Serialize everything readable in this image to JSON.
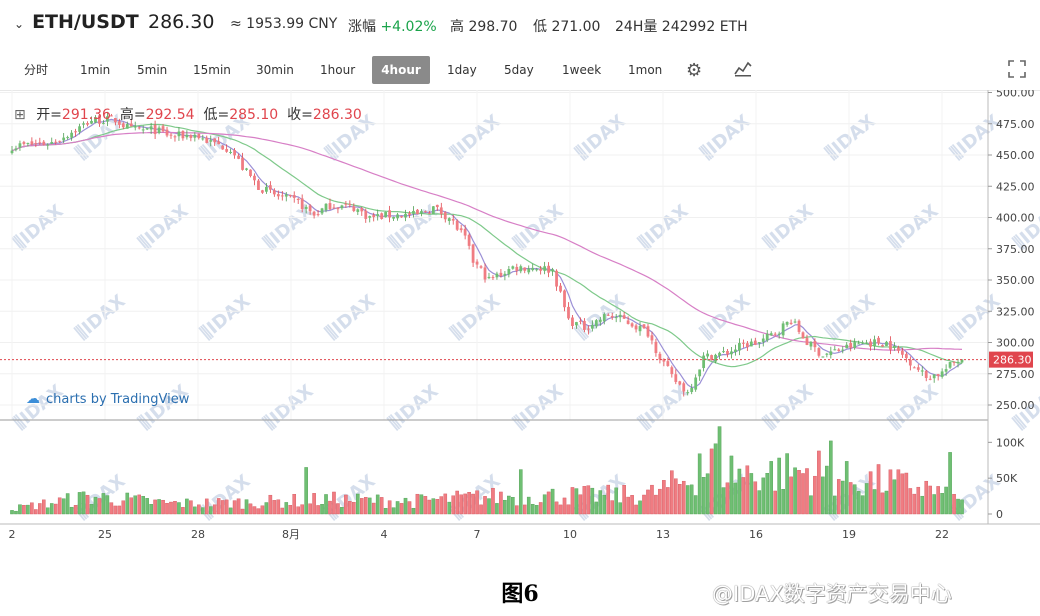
{
  "header": {
    "chevron": "⌄",
    "symbol": "ETH/USDT",
    "price": "286.30",
    "cny": "≈ 1953.99 CNY",
    "change_label": "涨幅",
    "change_value": "+4.02%",
    "high_label": "高",
    "high_value": "298.70",
    "low_label": "低",
    "low_value": "271.00",
    "volume_label": "24H量",
    "volume_value": "242992 ETH"
  },
  "toolbar": {
    "timeframes": [
      "分时",
      "1min",
      "5min",
      "15min",
      "30min",
      "1hour",
      "4hour",
      "1day",
      "5day",
      "1week",
      "1mon"
    ],
    "active": "4hour",
    "settings_icon": "gear-icon",
    "indicator_icon": "indicators-icon",
    "fullscreen_icon": "fullscreen-icon"
  },
  "ohlc": {
    "open_label": "开=",
    "open": "291.36",
    "high_label": "高=",
    "high": "292.54",
    "low_label": "低=",
    "low": "285.10",
    "close_label": "收=",
    "close": "286.30"
  },
  "branding": {
    "tradingview": "charts by TradingView",
    "watermark": "IDAX",
    "footer_mark": "@IDAX数字资产交易中心",
    "caption": "图6"
  },
  "colors": {
    "up": "#6fbf73",
    "down": "#f07c82",
    "ma_short": "#9b8fd6",
    "ma_mid": "#7ec98a",
    "ma_long": "#d77fc6",
    "price_line": "#e0454d"
  },
  "chart_data": {
    "type": "candlestick",
    "interval": "4hour",
    "x_ticks": [
      "2",
      "25",
      "28",
      "8月",
      "4",
      "7",
      "10",
      "13",
      "16",
      "19",
      "22"
    ],
    "y_ticks": [
      "250.00",
      "275.00",
      "300.00",
      "325.00",
      "350.00",
      "375.00",
      "400.00",
      "425.00",
      "450.00",
      "475.00",
      "500.00"
    ],
    "ylim": [
      238,
      502
    ],
    "volume_ticks": [
      "0",
      "50K",
      "100K"
    ],
    "volume_ylim": [
      0,
      120000
    ],
    "last_price": "286.30",
    "close_anchors": [
      [
        0,
        457
      ],
      [
        10,
        460
      ],
      [
        16,
        470
      ],
      [
        20,
        478
      ],
      [
        26,
        478
      ],
      [
        30,
        470
      ],
      [
        36,
        470
      ],
      [
        40,
        465
      ],
      [
        46,
        466
      ],
      [
        50,
        460
      ],
      [
        55,
        455
      ],
      [
        58,
        440
      ],
      [
        62,
        425
      ],
      [
        66,
        418
      ],
      [
        72,
        412
      ],
      [
        76,
        402
      ],
      [
        80,
        410
      ],
      [
        86,
        408
      ],
      [
        90,
        400
      ],
      [
        96,
        402
      ],
      [
        102,
        402
      ],
      [
        106,
        408
      ],
      [
        110,
        400
      ],
      [
        114,
        383
      ],
      [
        116,
        365
      ],
      [
        120,
        350
      ],
      [
        126,
        360
      ],
      [
        132,
        360
      ],
      [
        136,
        358
      ],
      [
        140,
        318
      ],
      [
        144,
        312
      ],
      [
        150,
        322
      ],
      [
        154,
        318
      ],
      [
        160,
        308
      ],
      [
        162,
        295
      ],
      [
        166,
        272
      ],
      [
        170,
        260
      ],
      [
        174,
        288
      ],
      [
        180,
        292
      ],
      [
        184,
        298
      ],
      [
        188,
        300
      ],
      [
        192,
        308
      ],
      [
        196,
        318
      ],
      [
        200,
        300
      ],
      [
        204,
        290
      ],
      [
        210,
        296
      ],
      [
        214,
        300
      ],
      [
        220,
        300
      ],
      [
        226,
        285
      ],
      [
        230,
        272
      ],
      [
        234,
        276
      ],
      [
        238,
        286.3
      ]
    ],
    "volume_envelope": [
      [
        0,
        9000
      ],
      [
        20,
        30000
      ],
      [
        40,
        18000
      ],
      [
        60,
        20000
      ],
      [
        80,
        25000
      ],
      [
        100,
        22000
      ],
      [
        120,
        30000
      ],
      [
        140,
        32000
      ],
      [
        160,
        33000
      ],
      [
        170,
        60000
      ],
      [
        176,
        85000
      ],
      [
        184,
        70000
      ],
      [
        194,
        72000
      ],
      [
        200,
        74000
      ],
      [
        210,
        60000
      ],
      [
        220,
        55000
      ],
      [
        230,
        45000
      ],
      [
        238,
        22000
      ]
    ],
    "volume_spikes": [
      [
        178,
        122000
      ],
      [
        173,
        84000
      ],
      [
        177,
        98000
      ],
      [
        206,
        102000
      ],
      [
        203,
        88000
      ],
      [
        236,
        86000
      ],
      [
        128,
        62000
      ],
      [
        74,
        65000
      ]
    ],
    "moving_averages": [
      {
        "period": 5,
        "color": "#9b8fd6"
      },
      {
        "period": 20,
        "color": "#7ec98a"
      },
      {
        "period": 60,
        "color": "#d77fc6"
      }
    ]
  }
}
